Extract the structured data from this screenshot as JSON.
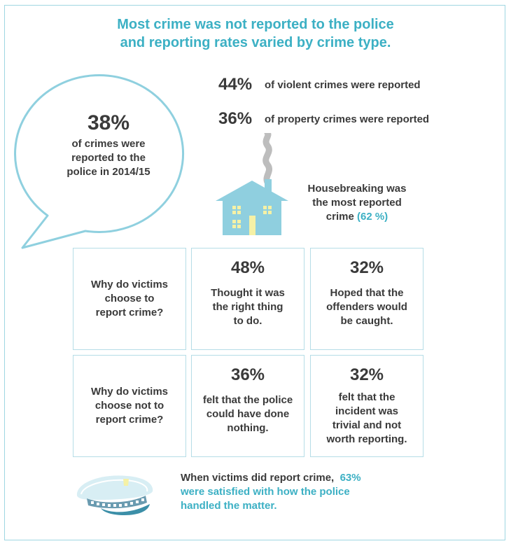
{
  "title": {
    "line1": "Most crime was not reported to the police",
    "line2": "and reporting rates varied by crime type."
  },
  "bubble": {
    "percent": "38%",
    "line1": "of crimes were",
    "line2": "reported to the",
    "line3": "police in 2014/15"
  },
  "stats": [
    {
      "percent": "44%",
      "text": "of violent crimes were reported"
    },
    {
      "percent": "36%",
      "text": "of property crimes were reported"
    }
  ],
  "house": {
    "line1": "Housebreaking was",
    "line2": "the most reported",
    "line3": "crime",
    "accent": "(62 %)",
    "icon": "house-icon"
  },
  "grid": {
    "row1": {
      "question": [
        "Why do victims",
        "choose to",
        "report crime?"
      ],
      "cells": [
        {
          "percent": "48%",
          "lines": [
            "Thought it was",
            "the right thing",
            "to do."
          ]
        },
        {
          "percent": "32%",
          "lines": [
            "Hoped that the",
            "offenders would",
            "be caught."
          ]
        }
      ]
    },
    "row2": {
      "question": [
        "Why do victims",
        "choose not to",
        "report crime?"
      ],
      "cells": [
        {
          "percent": "36%",
          "lines": [
            "felt that the police",
            "could have done",
            "nothing."
          ]
        },
        {
          "percent": "32%",
          "lines": [
            "felt that the",
            "incident was",
            "trivial and not",
            "worth reporting."
          ]
        }
      ]
    }
  },
  "footer": {
    "line1_prefix": "When victims did report crime,",
    "line1_accent": "63%",
    "line2": "were satisfied with how the police",
    "line3": "handled the matter.",
    "icon": "police-cap-icon"
  },
  "colors": {
    "accent": "#3cb0c4",
    "box_border": "#b5dde7",
    "house_fill": "#8fcfdf",
    "window_fill": "#f5f1a6"
  }
}
